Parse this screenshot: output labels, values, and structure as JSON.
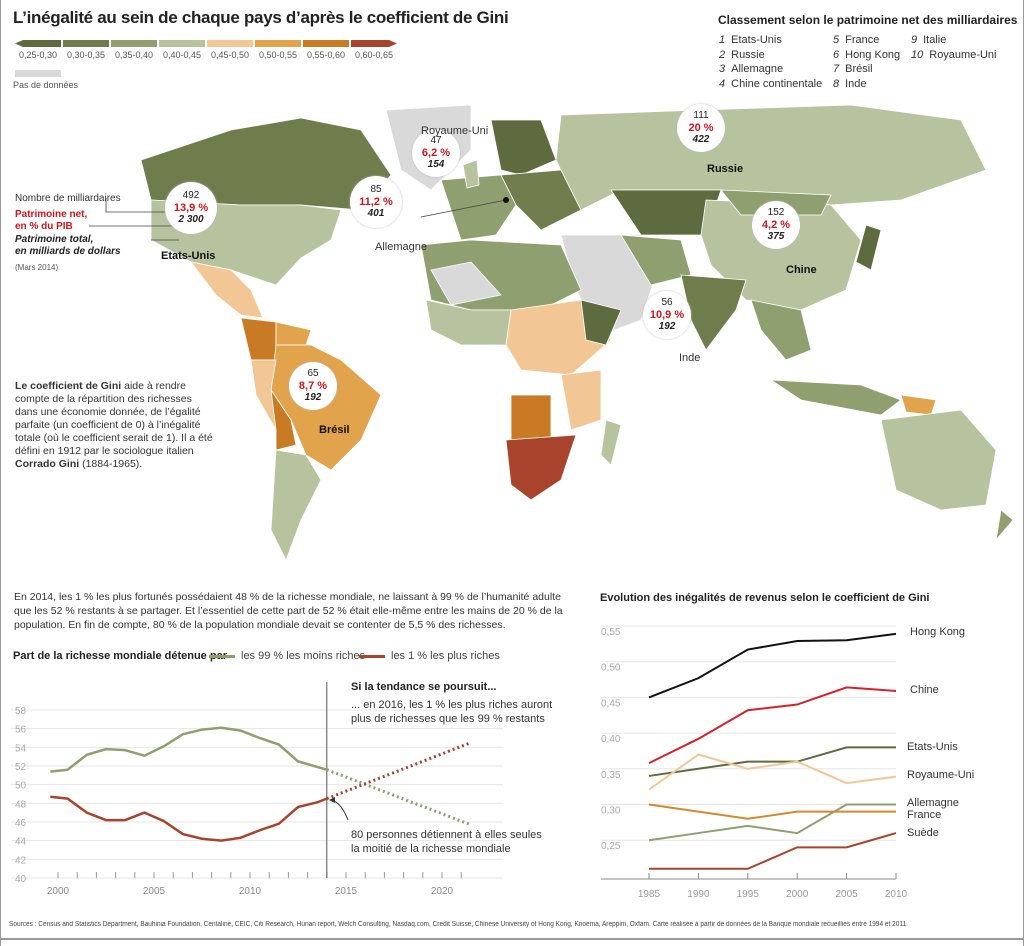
{
  "title": "L’inégalité au sein de chaque pays d’après le coefficient de Gini",
  "legend": {
    "bins": [
      {
        "label": "0,25-0,30",
        "color": "#5e6b3e"
      },
      {
        "label": "0,30-0,35",
        "color": "#6f7d4c"
      },
      {
        "label": "0,35-0,40",
        "color": "#909f6f"
      },
      {
        "label": "0,40-0,45",
        "color": "#b7c39e"
      },
      {
        "label": "0,45-0,50",
        "color": "#f2c795"
      },
      {
        "label": "0,50-0,55",
        "color": "#e1a34b"
      },
      {
        "label": "0,55-0,60",
        "color": "#c97a25"
      },
      {
        "label": "0,60-0,65",
        "color": "#a8432c"
      }
    ],
    "nodata_label": "Pas de données",
    "nodata_color": "#d9d9d9"
  },
  "ranking": {
    "title": "Classement selon le patrimoine net des milliardaires",
    "items": [
      {
        "n": "1",
        "name": "Etats-Unis"
      },
      {
        "n": "2",
        "name": "Russie"
      },
      {
        "n": "3",
        "name": "Allemagne"
      },
      {
        "n": "4",
        "name": "Chine continentale"
      },
      {
        "n": "5",
        "name": "France"
      },
      {
        "n": "6",
        "name": "Hong Kong"
      },
      {
        "n": "7",
        "name": "Brésil"
      },
      {
        "n": "8",
        "name": "Inde"
      },
      {
        "n": "9",
        "name": "Italie"
      },
      {
        "n": "10",
        "name": "Royaume-Uni"
      }
    ]
  },
  "key": {
    "billionaires": "Nombre de milliardaires",
    "net_worth_1": "Patrimoine net,",
    "net_worth_2": "en % du PIB",
    "total_1": "Patrimoine total,",
    "total_2": "en milliards de dollars",
    "date": "(Mars 2014)"
  },
  "bubbles": [
    {
      "country": "Etats-Unis",
      "count": "492",
      "pct": "13,9 %",
      "total": "2 300"
    },
    {
      "country": "Royaume-Uni",
      "count": "47",
      "pct": "6,2 %",
      "total": "154"
    },
    {
      "country": "Allemagne",
      "count": "85",
      "pct": "11,2 %",
      "total": "401"
    },
    {
      "country": "Russie",
      "count": "111",
      "pct": "20 %",
      "total": "422"
    },
    {
      "country": "Chine",
      "count": "152",
      "pct": "4,2 %",
      "total": "375"
    },
    {
      "country": "Inde",
      "count": "56",
      "pct": "10,9 %",
      "total": "192"
    },
    {
      "country": "Brésil",
      "count": "65",
      "pct": "8,7 %",
      "total": "192"
    }
  ],
  "gini_text": {
    "bold1": "Le coefficient de Gini",
    "text1": " aide à rendre compte de la répartition des richesses dans une économie donnée, de l’égalité parfaite (un coefficient de 0) à l’inégalité totale (où le coefficient serait de 1). Il a été défini en 1912 par le sociologue italien ",
    "bold2": "Corrado Gini",
    "text2": " (1884-1965)."
  },
  "intro": "En 2014, les 1 % les plus fortunés possédaient 48 % de la richesse mondiale, ne laissant à 99 % de l’humanité adulte que les 52 % restants à se partager. Et l’essentiel de cette part de 52 % était elle-même entre les mains de 20 % de la population. En fin de compte, 80 % de la population mondiale devait se contenter de 5,5 % des richesses.",
  "sources": "Sources : Census and Statistics Department, Bauhinia Foundation, Centaline, CEIC, Citi Research, Hunan report, Welch Consulting, Nasdaq.com, Credit Suisse, Chinese University of Hong Kong, Knoema, Areppim, Oxfam. Carte réalisée à partir de données de la Banque mondiale recueillies entre 1994 et 2011.",
  "chart_data": [
    {
      "type": "line",
      "title": "Part de la richesse mondiale détenue par",
      "xlabel": "",
      "ylabel": "",
      "xlim": [
        1999.5,
        2022
      ],
      "ylim": [
        40,
        58
      ],
      "yticks": [
        "40",
        "42",
        "44",
        "46",
        "48",
        "50",
        "52",
        "54",
        "56",
        "58"
      ],
      "xticks": [
        "2000",
        "2005",
        "2010",
        "2015",
        "2020"
      ],
      "grid": true,
      "legend": "top",
      "projection_start": 2014,
      "series": [
        {
          "name": "les 99 % les moins riches",
          "color": "#8fa06e",
          "x": [
            1999.6,
            2000.5,
            2001.5,
            2002.5,
            2003.5,
            2004.5,
            2005.5,
            2006.5,
            2007.5,
            2008.5,
            2009.5,
            2010.5,
            2011.5,
            2012.5,
            2013.5,
            2014
          ],
          "values": [
            51.4,
            51.6,
            53.2,
            53.8,
            53.7,
            53.1,
            54.1,
            55.4,
            55.9,
            56.1,
            55.8,
            55.0,
            54.3,
            52.5,
            51.9,
            51.6
          ],
          "projection": {
            "x": [
              2014,
              2021.5
            ],
            "values": [
              51.6,
              45.7
            ]
          }
        },
        {
          "name": "les 1 % les plus riches",
          "color": "#a8432c",
          "x": [
            1999.6,
            2000.5,
            2001.5,
            2002.5,
            2003.5,
            2004.5,
            2005.5,
            2006.5,
            2007.5,
            2008.5,
            2009.5,
            2010.5,
            2011.5,
            2012.5,
            2013.5,
            2014
          ],
          "values": [
            48.7,
            48.5,
            47.0,
            46.2,
            46.2,
            47.0,
            46.1,
            44.7,
            44.2,
            44.0,
            44.3,
            45.1,
            45.8,
            47.6,
            48.1,
            48.5
          ],
          "projection": {
            "x": [
              2014,
              2021.5
            ],
            "values": [
              48.5,
              54.5
            ]
          }
        }
      ],
      "annotations": {
        "heading": "Si la tendance se poursuit...",
        "line1": "... en 2016, les 1 % les plus riches auront",
        "line2": "plus de richesses que les 99 % restants",
        "arrow1": "80 personnes détiennent à elles seules",
        "arrow2": "la moitié de la richesse mondiale"
      }
    },
    {
      "type": "line",
      "title": "Evolution des inégalités de revenus selon le coefficient de Gini",
      "xlabel": "",
      "ylabel": "",
      "x": [
        1985,
        1990,
        1995,
        2000,
        2005,
        2010
      ],
      "xticks": [
        "1985",
        "1990",
        "1995",
        "2000",
        "2005",
        "2010"
      ],
      "ylim": [
        0.195,
        0.56
      ],
      "yticks": [
        "0,25",
        "0,30",
        "0,35",
        "0,40",
        "0,45",
        "0,50",
        "0,55"
      ],
      "ytick_values": [
        0.25,
        0.3,
        0.35,
        0.4,
        0.45,
        0.5,
        0.55
      ],
      "grid": true,
      "legend": "right (end labels)",
      "series": [
        {
          "name": "Hong Kong",
          "color": "#111111",
          "values": [
            0.45,
            0.477,
            0.517,
            0.529,
            0.53,
            0.539
          ]
        },
        {
          "name": "Chine",
          "color": "#d9202a",
          "values": [
            0.358,
            0.392,
            0.432,
            0.44,
            0.464,
            0.459
          ]
        },
        {
          "name": "Etats-Unis",
          "color": "#5e6b3e",
          "values": [
            0.34,
            0.35,
            0.36,
            0.36,
            0.38,
            0.38
          ]
        },
        {
          "name": "Royaume-Uni",
          "color": "#f2c795",
          "values": [
            0.321,
            0.37,
            0.35,
            0.36,
            0.33,
            0.339
          ]
        },
        {
          "name": "Allemagne",
          "color": "#909f6f",
          "values": [
            0.25,
            0.26,
            0.27,
            0.26,
            0.3,
            0.3
          ]
        },
        {
          "name": "France",
          "color": "#d4892a",
          "values": [
            0.3,
            0.29,
            0.28,
            0.29,
            0.29,
            0.29
          ]
        },
        {
          "name": "Suède",
          "color": "#a8432c",
          "values": [
            0.21,
            0.21,
            0.21,
            0.24,
            0.24,
            0.26
          ]
        }
      ]
    }
  ]
}
